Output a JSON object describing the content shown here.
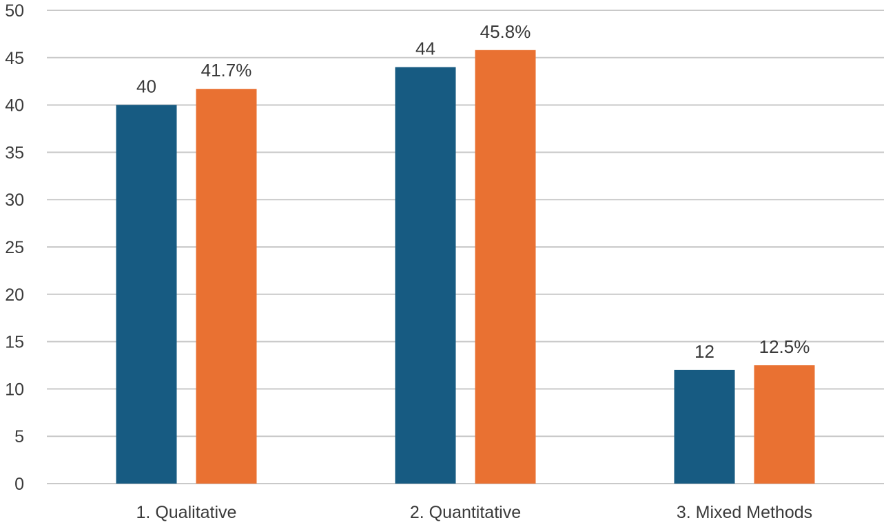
{
  "chart_data": {
    "type": "bar",
    "categories": [
      "1. Qualitative",
      "2. Quantitative",
      "3. Mixed Methods"
    ],
    "series": [
      {
        "color": "#175b82",
        "values": [
          40,
          44,
          12
        ],
        "labels": [
          "40",
          "44",
          "12"
        ]
      },
      {
        "color": "#e97132",
        "values": [
          41.7,
          45.8,
          12.5
        ],
        "labels": [
          "41.7%",
          "45.8%",
          "12.5%"
        ]
      }
    ],
    "ylim": [
      0,
      50
    ],
    "yticks": [
      "0",
      "5",
      "10",
      "15",
      "20",
      "25",
      "30",
      "35",
      "40",
      "45",
      "50"
    ],
    "grid": true,
    "legend": "none"
  }
}
